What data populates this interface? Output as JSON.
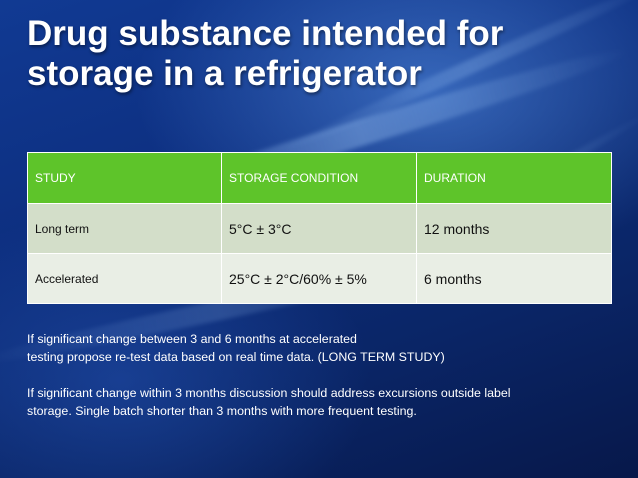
{
  "slide": {
    "title_lines": [
      "Drug substance intended for",
      "storage in a refrigerator"
    ],
    "table": {
      "headers": [
        "STUDY",
        "STORAGE CONDITION",
        "DURATION"
      ],
      "rows": [
        [
          "Long term",
          "5°C ± 3°C",
          "12 months"
        ],
        [
          "Accelerated",
          "25°C ± 2°C/60% ± 5%",
          "6 months"
        ]
      ],
      "header_color": "#5ec42a",
      "row_colors": [
        "#d3dec9",
        "#e9eee5"
      ]
    },
    "notes": [
      [
        "If significant change between 3 and 6 months at accelerated",
        "testing propose re-test data based on real time data. (LONG TERM STUDY)"
      ],
      [
        "If significant change within 3  months discussion should address excursions outside label",
        "storage. Single batch shorter than 3 months with more frequent testing."
      ]
    ]
  }
}
